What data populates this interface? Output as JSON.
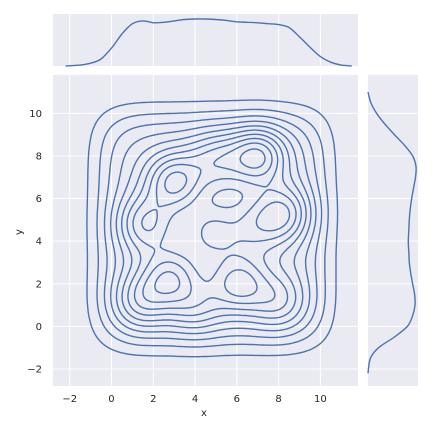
{
  "chart_data": {
    "type": "contour",
    "description_free": true,
    "xlabel": "x",
    "ylabel": "y",
    "xlim": [
      -2.8,
      11.8
    ],
    "ylim": [
      -2.8,
      11.8
    ],
    "xticks": [
      -2,
      0,
      2,
      4,
      6,
      8,
      10
    ],
    "yticks": [
      -2,
      0,
      2,
      4,
      6,
      8,
      10
    ],
    "xtick_labels": [
      "−2",
      "0",
      "2",
      "4",
      "6",
      "8",
      "10"
    ],
    "ytick_labels": [
      "−2",
      "0",
      "2",
      "4",
      "6",
      "8",
      "10"
    ],
    "grid": true,
    "background": "#eaeaf2",
    "line_color": "#4c72b0",
    "contour_levels": 10,
    "kde_peaks": [
      {
        "x": 7.0,
        "y": 8.0,
        "weight": 1.0
      },
      {
        "x": 3.0,
        "y": 6.8,
        "weight": 0.95
      },
      {
        "x": 8.3,
        "y": 5.3,
        "weight": 0.75
      },
      {
        "x": 1.6,
        "y": 4.8,
        "weight": 0.75
      },
      {
        "x": 2.8,
        "y": 2.3,
        "weight": 0.8
      },
      {
        "x": 6.1,
        "y": 2.0,
        "weight": 0.8
      },
      {
        "x": 4.8,
        "y": 4.4,
        "weight": 0.55
      },
      {
        "x": 5.0,
        "y": 7.8,
        "weight": 0.6
      },
      {
        "x": 1.4,
        "y": 1.2,
        "weight": 0.6
      },
      {
        "x": 8.0,
        "y": 1.2,
        "weight": 0.5
      },
      {
        "x": 6.9,
        "y": 4.7,
        "weight": 0.45
      },
      {
        "x": 4.0,
        "y": 0.9,
        "weight": 0.45
      }
    ],
    "marginal_x": {
      "x": [
        -2.2,
        -1.5,
        -1,
        -0.5,
        0,
        0.5,
        1,
        1.5,
        2,
        2.5,
        3,
        3.5,
        4,
        4.5,
        5,
        5.5,
        6,
        6.5,
        7,
        7.5,
        8,
        8.5,
        9,
        9.5,
        10,
        10.5,
        11,
        11.5
      ],
      "density": [
        0.0,
        0.02,
        0.06,
        0.15,
        0.38,
        0.68,
        0.9,
        0.96,
        0.92,
        0.93,
        0.96,
        0.99,
        1.0,
        1.0,
        0.99,
        0.97,
        0.94,
        0.93,
        0.92,
        0.9,
        0.88,
        0.82,
        0.62,
        0.4,
        0.2,
        0.08,
        0.02,
        0.0
      ]
    },
    "marginal_y": {
      "y": [
        -2.2,
        -1.5,
        -1,
        -0.5,
        0,
        0.5,
        1,
        1.5,
        2,
        2.5,
        3,
        3.5,
        4,
        4.5,
        5,
        5.5,
        6,
        6.5,
        7,
        7.5,
        8,
        8.5,
        9,
        9.5,
        10,
        10.5,
        11
      ],
      "density": [
        0.0,
        0.05,
        0.22,
        0.55,
        0.82,
        0.93,
        0.98,
        0.97,
        0.93,
        0.89,
        0.86,
        0.85,
        0.84,
        0.85,
        0.86,
        0.88,
        0.91,
        0.95,
        0.99,
        1.0,
        0.93,
        0.76,
        0.55,
        0.35,
        0.18,
        0.06,
        0.0
      ]
    }
  }
}
